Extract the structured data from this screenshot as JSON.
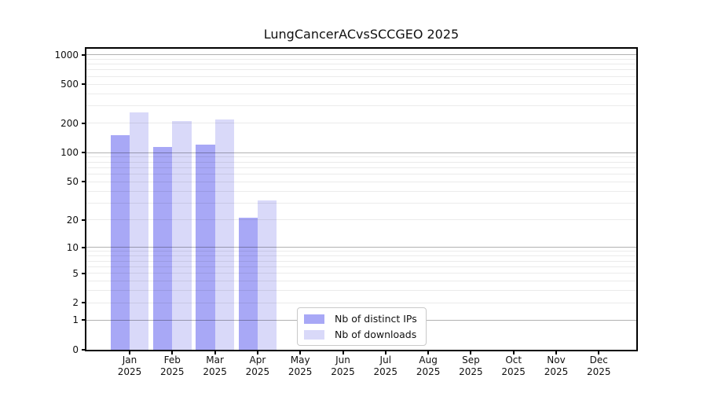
{
  "chart_data": {
    "type": "bar",
    "title": "LungCancerACvsSCCGEO 2025",
    "categories": [
      "Jan 2025",
      "Feb 2025",
      "Mar 2025",
      "Apr 2025",
      "May 2025",
      "Jun 2025",
      "Jul 2025",
      "Aug 2025",
      "Sep 2025",
      "Oct 2025",
      "Nov 2025",
      "Dec 2025"
    ],
    "series": [
      {
        "name": "Nb of distinct IPs",
        "color": "#a8a8f6",
        "values": [
          150,
          115,
          122,
          21,
          0,
          0,
          0,
          0,
          0,
          0,
          0,
          0
        ]
      },
      {
        "name": "Nb of downloads",
        "color": "#d9d9f9",
        "values": [
          260,
          210,
          218,
          32,
          0,
          0,
          0,
          0,
          0,
          0,
          0,
          0
        ]
      }
    ],
    "axis": {
      "y_scale": "log(value+1)",
      "y_range": [
        0,
        1150
      ],
      "y_tick_labels": [
        0,
        1,
        2,
        5,
        10,
        20,
        50,
        100,
        200,
        500,
        1000
      ],
      "major_gridlines": [
        1,
        10,
        100,
        1000
      ],
      "minor_gridlines": [
        2,
        3,
        4,
        5,
        6,
        7,
        8,
        9,
        20,
        30,
        40,
        50,
        60,
        70,
        80,
        90,
        200,
        300,
        400,
        500,
        600,
        700,
        800,
        900
      ],
      "grid": true,
      "xlabel": "",
      "ylabel": ""
    },
    "legend": {
      "position": "lower center",
      "entries": [
        "Nb of distinct IPs",
        "Nb of downloads"
      ]
    }
  }
}
